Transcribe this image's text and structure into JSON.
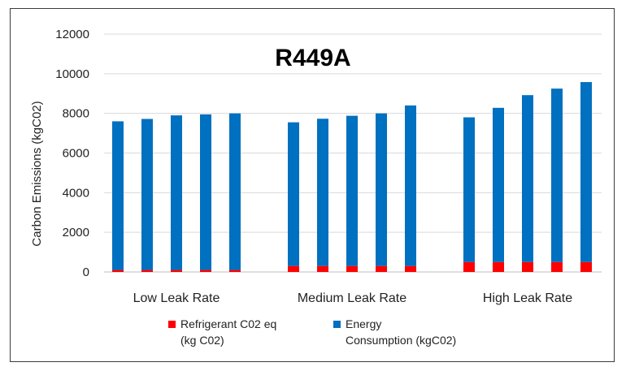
{
  "chart_data": {
    "type": "bar",
    "stacked": true,
    "title": "R449A",
    "ylabel": "Carbon Emissions (kgC02)",
    "xlabel": "",
    "ylim": [
      0,
      12000
    ],
    "yticks": [
      "0",
      "2000",
      "4000",
      "6000",
      "8000",
      "10000",
      "12000"
    ],
    "grid": true,
    "legend_position": "bottom",
    "groups": [
      "Low Leak Rate",
      "Medium Leak Rate",
      "High Leak Rate"
    ],
    "series": [
      {
        "name": "Refrigerant C02 eq (kg C02)",
        "legend_lines": [
          "Refrigerant C02 eq",
          "(kg C02)"
        ],
        "color": "#ff0000",
        "values": [
          [
            100,
            100,
            100,
            100,
            100
          ],
          [
            300,
            300,
            300,
            300,
            300
          ],
          [
            500,
            500,
            500,
            500,
            500
          ]
        ]
      },
      {
        "name": "Energy Consumption (kgC02)",
        "legend_lines": [
          "Energy",
          "Consumption (kgC02)"
        ],
        "color": "#0070c0",
        "values": [
          [
            7500,
            7620,
            7800,
            7850,
            7900
          ],
          [
            7250,
            7430,
            7580,
            7700,
            8100
          ],
          [
            7300,
            7780,
            8420,
            8750,
            9080
          ]
        ]
      }
    ]
  }
}
